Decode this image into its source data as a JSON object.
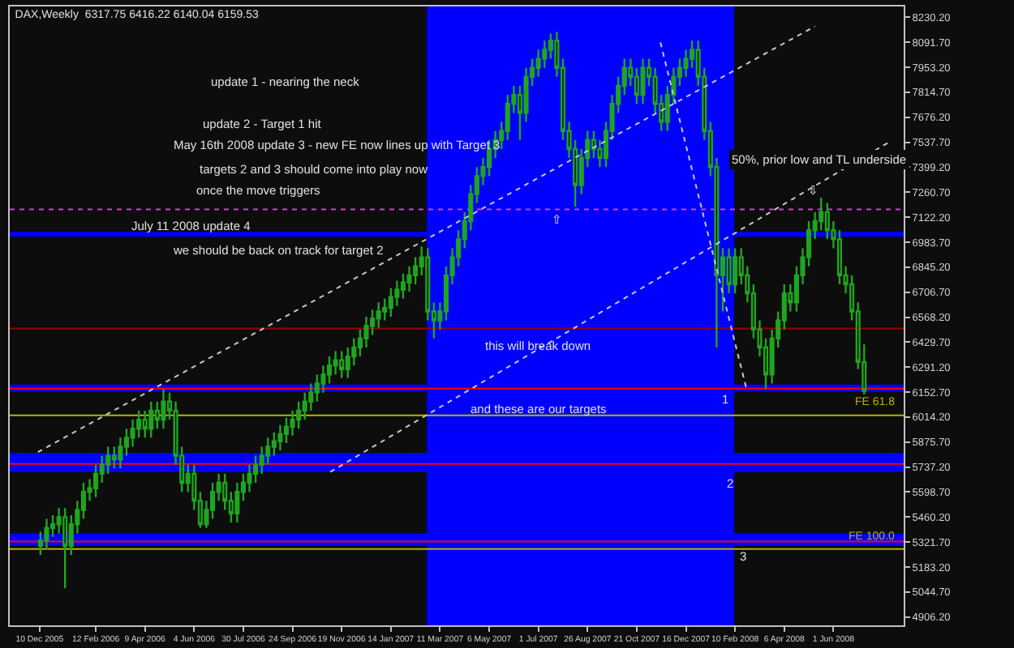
{
  "chart_data": {
    "type": "candlestick",
    "title": "DAX,Weekly  6317.75 6416.22 6140.04 6159.53",
    "color": "#1fa51f",
    "x": [
      "2005-12-11",
      "2005-12-18",
      "2005-12-25",
      "2006-01-01",
      "2006-01-08",
      "2006-01-15",
      "2006-01-22",
      "2006-01-29",
      "2006-02-05",
      "2006-02-12",
      "2006-02-19",
      "2006-02-26",
      "2006-03-05",
      "2006-03-12",
      "2006-03-19",
      "2006-03-26",
      "2006-04-02",
      "2006-04-09",
      "2006-04-16",
      "2006-04-23",
      "2006-04-30",
      "2006-05-07",
      "2006-05-14",
      "2006-05-21",
      "2006-05-28",
      "2006-06-04",
      "2006-06-11",
      "2006-06-18",
      "2006-06-25",
      "2006-07-02",
      "2006-07-09",
      "2006-07-16",
      "2006-07-23",
      "2006-07-30",
      "2006-08-06",
      "2006-08-13",
      "2006-08-20",
      "2006-08-27",
      "2006-09-03",
      "2006-09-10",
      "2006-09-17",
      "2006-09-24",
      "2006-10-01",
      "2006-10-08",
      "2006-10-15",
      "2006-10-22",
      "2006-10-29",
      "2006-11-05",
      "2006-11-12",
      "2006-11-19",
      "2006-11-26",
      "2006-12-03",
      "2006-12-10",
      "2006-12-17",
      "2006-12-24",
      "2006-12-31",
      "2007-01-07",
      "2007-01-14",
      "2007-01-21",
      "2007-01-28",
      "2007-02-04",
      "2007-02-11",
      "2007-02-18",
      "2007-02-25",
      "2007-03-04",
      "2007-03-11",
      "2007-03-18",
      "2007-03-25",
      "2007-04-01",
      "2007-04-08",
      "2007-04-15",
      "2007-04-22",
      "2007-04-29",
      "2007-05-06",
      "2007-05-13",
      "2007-05-20",
      "2007-05-27",
      "2007-06-03",
      "2007-06-10",
      "2007-06-17",
      "2007-06-24",
      "2007-07-01",
      "2007-07-08",
      "2007-07-15",
      "2007-07-22",
      "2007-07-29",
      "2007-08-05",
      "2007-08-12",
      "2007-08-19",
      "2007-08-26",
      "2007-09-02",
      "2007-09-09",
      "2007-09-16",
      "2007-09-23",
      "2007-09-30",
      "2007-10-07",
      "2007-10-14",
      "2007-10-21",
      "2007-10-28",
      "2007-11-04",
      "2007-11-11",
      "2007-11-18",
      "2007-11-25",
      "2007-12-02",
      "2007-12-09",
      "2007-12-16",
      "2007-12-23",
      "2007-12-30",
      "2008-01-06",
      "2008-01-13",
      "2008-01-20",
      "2008-01-27",
      "2008-02-03",
      "2008-02-10",
      "2008-02-17",
      "2008-02-24",
      "2008-03-02",
      "2008-03-09",
      "2008-03-16",
      "2008-03-23",
      "2008-03-30",
      "2008-04-06",
      "2008-04-13",
      "2008-04-20",
      "2008-04-27",
      "2008-05-04",
      "2008-05-11",
      "2008-05-18",
      "2008-05-25",
      "2008-06-01",
      "2008-06-08",
      "2008-06-15",
      "2008-06-22",
      "2008-06-29",
      "2008-07-06"
    ],
    "ohlc": [
      [
        5300,
        5380,
        5250,
        5330
      ],
      [
        5330,
        5450,
        5280,
        5400
      ],
      [
        5400,
        5470,
        5350,
        5420
      ],
      [
        5420,
        5510,
        5370,
        5460
      ],
      [
        5460,
        5510,
        5065,
        5300
      ],
      [
        5300,
        5470,
        5250,
        5420
      ],
      [
        5420,
        5550,
        5370,
        5500
      ],
      [
        5500,
        5650,
        5450,
        5600
      ],
      [
        5600,
        5670,
        5550,
        5620
      ],
      [
        5620,
        5750,
        5570,
        5700
      ],
      [
        5700,
        5800,
        5650,
        5750
      ],
      [
        5750,
        5850,
        5700,
        5800
      ],
      [
        5800,
        5850,
        5730,
        5780
      ],
      [
        5780,
        5900,
        5730,
        5850
      ],
      [
        5850,
        5950,
        5800,
        5900
      ],
      [
        5900,
        6000,
        5850,
        5950
      ],
      [
        5950,
        6050,
        5900,
        6000
      ],
      [
        6000,
        6050,
        5900,
        5950
      ],
      [
        5950,
        6100,
        5900,
        6050
      ],
      [
        6050,
        6100,
        5950,
        6000
      ],
      [
        6000,
        6170,
        5950,
        6100
      ],
      [
        6100,
        6150,
        6000,
        6050
      ],
      [
        6050,
        6100,
        5750,
        5800
      ],
      [
        5800,
        5850,
        5600,
        5650
      ],
      [
        5650,
        5750,
        5600,
        5700
      ],
      [
        5700,
        5750,
        5500,
        5550
      ],
      [
        5550,
        5600,
        5400,
        5420
      ],
      [
        5420,
        5550,
        5400,
        5500
      ],
      [
        5500,
        5650,
        5450,
        5600
      ],
      [
        5600,
        5700,
        5550,
        5650
      ],
      [
        5650,
        5700,
        5500,
        5550
      ],
      [
        5550,
        5600,
        5430,
        5480
      ],
      [
        5480,
        5650,
        5430,
        5600
      ],
      [
        5600,
        5700,
        5550,
        5650
      ],
      [
        5650,
        5750,
        5600,
        5700
      ],
      [
        5700,
        5800,
        5650,
        5750
      ],
      [
        5750,
        5850,
        5700,
        5800
      ],
      [
        5800,
        5900,
        5750,
        5850
      ],
      [
        5850,
        5930,
        5800,
        5880
      ],
      [
        5880,
        5970,
        5830,
        5920
      ],
      [
        5920,
        6010,
        5870,
        5960
      ],
      [
        5960,
        6050,
        5910,
        6000
      ],
      [
        6000,
        6100,
        5950,
        6050
      ],
      [
        6050,
        6150,
        6000,
        6100
      ],
      [
        6100,
        6200,
        6050,
        6150
      ],
      [
        6150,
        6250,
        6100,
        6200
      ],
      [
        6200,
        6300,
        6150,
        6250
      ],
      [
        6250,
        6350,
        6200,
        6300
      ],
      [
        6300,
        6380,
        6250,
        6330
      ],
      [
        6330,
        6380,
        6230,
        6280
      ],
      [
        6280,
        6400,
        6230,
        6350
      ],
      [
        6350,
        6450,
        6300,
        6400
      ],
      [
        6400,
        6500,
        6350,
        6450
      ],
      [
        6450,
        6570,
        6400,
        6520
      ],
      [
        6520,
        6610,
        6470,
        6560
      ],
      [
        6560,
        6650,
        6510,
        6600
      ],
      [
        6600,
        6670,
        6550,
        6620
      ],
      [
        6620,
        6730,
        6570,
        6680
      ],
      [
        6680,
        6770,
        6630,
        6720
      ],
      [
        6720,
        6810,
        6670,
        6760
      ],
      [
        6760,
        6850,
        6710,
        6800
      ],
      [
        6800,
        6900,
        6750,
        6850
      ],
      [
        6850,
        6960,
        6800,
        6900
      ],
      [
        6900,
        6950,
        6550,
        6600
      ],
      [
        6600,
        6650,
        6450,
        6550
      ],
      [
        6550,
        6650,
        6500,
        6600
      ],
      [
        6600,
        6850,
        6550,
        6800
      ],
      [
        6800,
        6950,
        6750,
        6900
      ],
      [
        6900,
        7050,
        6850,
        7000
      ],
      [
        7000,
        7150,
        6950,
        7100
      ],
      [
        7100,
        7300,
        7050,
        7250
      ],
      [
        7250,
        7400,
        7200,
        7350
      ],
      [
        7350,
        7450,
        7300,
        7400
      ],
      [
        7400,
        7550,
        7350,
        7500
      ],
      [
        7500,
        7600,
        7450,
        7550
      ],
      [
        7550,
        7650,
        7500,
        7600
      ],
      [
        7600,
        7800,
        7550,
        7750
      ],
      [
        7750,
        7850,
        7700,
        7800
      ],
      [
        7800,
        7850,
        7550,
        7700
      ],
      [
        7700,
        7950,
        7650,
        7900
      ],
      [
        7900,
        8000,
        7850,
        7950
      ],
      [
        7950,
        8050,
        7900,
        8000
      ],
      [
        8000,
        8100,
        7950,
        8050
      ],
      [
        8050,
        8140,
        8000,
        8100
      ],
      [
        8100,
        8150,
        7900,
        7950
      ],
      [
        7950,
        8000,
        7550,
        7600
      ],
      [
        7600,
        7650,
        7450,
        7500
      ],
      [
        7500,
        7550,
        7180,
        7300
      ],
      [
        7300,
        7500,
        7250,
        7450
      ],
      [
        7450,
        7600,
        7400,
        7550
      ],
      [
        7550,
        7600,
        7450,
        7500
      ],
      [
        7500,
        7550,
        7400,
        7450
      ],
      [
        7450,
        7650,
        7400,
        7600
      ],
      [
        7600,
        7800,
        7550,
        7750
      ],
      [
        7750,
        7900,
        7700,
        7850
      ],
      [
        7850,
        8000,
        7800,
        7950
      ],
      [
        7950,
        8000,
        7850,
        7900
      ],
      [
        7900,
        7950,
        7750,
        7800
      ],
      [
        7800,
        8000,
        7750,
        7950
      ],
      [
        7950,
        8000,
        7850,
        7900
      ],
      [
        7900,
        7950,
        7700,
        7750
      ],
      [
        7750,
        7800,
        7600,
        7650
      ],
      [
        7650,
        7850,
        7600,
        7800
      ],
      [
        7800,
        7950,
        7750,
        7900
      ],
      [
        7900,
        8000,
        7850,
        7950
      ],
      [
        7950,
        8050,
        7900,
        8000
      ],
      [
        8000,
        8100,
        7950,
        8050
      ],
      [
        8050,
        8100,
        7850,
        7900
      ],
      [
        7900,
        7950,
        7550,
        7600
      ],
      [
        7600,
        7650,
        7350,
        7400
      ],
      [
        7400,
        7450,
        6400,
        6800
      ],
      [
        6800,
        6950,
        6600,
        6900
      ],
      [
        6900,
        6950,
        6700,
        6750
      ],
      [
        6750,
        6950,
        6700,
        6900
      ],
      [
        6900,
        6950,
        6750,
        6800
      ],
      [
        6800,
        6850,
        6650,
        6700
      ],
      [
        6700,
        6750,
        6450,
        6500
      ],
      [
        6500,
        6550,
        6350,
        6400
      ],
      [
        6400,
        6450,
        6170,
        6250
      ],
      [
        6250,
        6500,
        6200,
        6450
      ],
      [
        6450,
        6600,
        6400,
        6550
      ],
      [
        6550,
        6750,
        6500,
        6700
      ],
      [
        6700,
        6750,
        6600,
        6650
      ],
      [
        6650,
        6850,
        6600,
        6800
      ],
      [
        6800,
        6950,
        6750,
        6900
      ],
      [
        6900,
        7100,
        6850,
        7050
      ],
      [
        7050,
        7150,
        7000,
        7100
      ],
      [
        7100,
        7230,
        7050,
        7150
      ],
      [
        7150,
        7200,
        7000,
        7050
      ],
      [
        7050,
        7100,
        6950,
        7000
      ],
      [
        7000,
        7050,
        6750,
        6800
      ],
      [
        6800,
        6850,
        6700,
        6750
      ],
      [
        6750,
        6800,
        6550,
        6600
      ],
      [
        6600,
        6650,
        6280,
        6320
      ],
      [
        6317.75,
        6416.22,
        6140.04,
        6159.53
      ]
    ],
    "series": [
      {
        "type": "line",
        "color": "#c8c8c8",
        "line_style": "dotted",
        "x": [
          "2005-12-08",
          "2008-05-11"
        ],
        "values": [
          5820,
          8180
        ]
      },
      {
        "type": "line",
        "color": "#c8c8c8",
        "line_style": "dotted",
        "x": [
          "2006-11-06",
          "2008-08-04"
        ],
        "values": [
          5710,
          7540
        ]
      },
      {
        "type": "line",
        "color": "#c8c8c8",
        "line_style": "dotted",
        "x": [
          "2007-11-17",
          "2008-02-23"
        ],
        "values": [
          8090,
          6170
        ]
      }
    ],
    "xlim": [
      "2005-11-06",
      "2008-08-20"
    ],
    "xticks": [
      {
        "value": "2005-12-10",
        "label": "10 Dec 2005"
      },
      {
        "value": "2006-02-12",
        "label": "12 Feb 2006"
      },
      {
        "value": "2006-04-09",
        "label": "9 Apr 2006"
      },
      {
        "value": "2006-06-04",
        "label": "4 Jun 2006"
      },
      {
        "value": "2006-07-30",
        "label": "30 Jul 2006"
      },
      {
        "value": "2006-09-24",
        "label": "24 Sep 2006"
      },
      {
        "value": "2006-11-19",
        "label": "19 Nov 2006"
      },
      {
        "value": "2007-01-14",
        "label": "14 Jan 2007"
      },
      {
        "value": "2007-03-11",
        "label": "11 Mar 2007"
      },
      {
        "value": "2007-05-06",
        "label": "6 May 2007"
      },
      {
        "value": "2007-07-01",
        "label": "1 Jul 2007"
      },
      {
        "value": "2007-08-26",
        "label": "26 Aug 2007"
      },
      {
        "value": "2007-10-21",
        "label": "21 Oct 2007"
      },
      {
        "value": "2007-12-16",
        "label": "16 Dec 2007"
      },
      {
        "value": "2008-02-10",
        "label": "10 Feb 2008"
      },
      {
        "value": "2008-04-06",
        "label": "6 Apr 2008"
      },
      {
        "value": "2008-06-01",
        "label": "1 Jun 2008"
      }
    ],
    "ylim": [
      4860,
      8290
    ],
    "yticks": [
      {
        "value": 4906.2,
        "label": "4906.20"
      },
      {
        "value": 5044.7,
        "label": "5044.70"
      },
      {
        "value": 5183.2,
        "label": "5183.20"
      },
      {
        "value": 5321.7,
        "label": "5321.70"
      },
      {
        "value": 5460.2,
        "label": "5460.20"
      },
      {
        "value": 5598.7,
        "label": "5598.70"
      },
      {
        "value": 5737.2,
        "label": "5737.20"
      },
      {
        "value": 5875.7,
        "label": "5875.70"
      },
      {
        "value": 6014.2,
        "label": "6014.20"
      },
      {
        "value": 6152.7,
        "label": "6152.70"
      },
      {
        "value": 6291.2,
        "label": "6291.20"
      },
      {
        "value": 6429.7,
        "label": "6429.70"
      },
      {
        "value": 6568.2,
        "label": "6568.20"
      },
      {
        "value": 6706.7,
        "label": "6706.70"
      },
      {
        "value": 6845.2,
        "label": "6845.20"
      },
      {
        "value": 6983.7,
        "label": "6983.70"
      },
      {
        "value": 7122.2,
        "label": "7122.20"
      },
      {
        "value": 7260.7,
        "label": "7260.70"
      },
      {
        "value": 7399.2,
        "label": "7399.20"
      },
      {
        "value": 7537.7,
        "label": "7537.70"
      },
      {
        "value": 7676.2,
        "label": "7676.20"
      },
      {
        "value": 7814.7,
        "label": "7814.70"
      },
      {
        "value": 7953.2,
        "label": "7953.20"
      },
      {
        "value": 8091.7,
        "label": "8091.70"
      },
      {
        "value": 8230.2,
        "label": "8230.20"
      }
    ],
    "bands": [
      {
        "axis": "x",
        "from": "2007-02-24",
        "to": "2008-02-09",
        "color": "#0000ff"
      },
      {
        "axis": "y",
        "from": 6155,
        "to": 6195,
        "color": "#0000ff"
      },
      {
        "axis": "y",
        "from": 5710,
        "to": 5815,
        "color": "#0000ff"
      },
      {
        "axis": "y",
        "from": 5300,
        "to": 5370,
        "color": "#0000ff"
      }
    ],
    "ref_lines": [
      {
        "axis": "y",
        "value": 7165,
        "color": "#cc44cc",
        "line_style": "dotted"
      },
      {
        "axis": "y",
        "value": 7027,
        "color": "#0000ff",
        "line_style": "solid"
      },
      {
        "axis": "y",
        "value": 6505,
        "color": "#990000",
        "line_style": "solid"
      },
      {
        "axis": "y",
        "value": 6172,
        "color": "#ff0000",
        "line_style": "solid"
      },
      {
        "axis": "y",
        "value": 6024,
        "color": "#b5b500",
        "line_style": "solid",
        "label": "FE 61.8"
      },
      {
        "axis": "y",
        "value": 5755,
        "color": "#ff0000",
        "line_style": "solid"
      },
      {
        "axis": "y",
        "value": 5325,
        "color": "#ff0000",
        "line_style": "solid"
      },
      {
        "axis": "y",
        "value": 5283,
        "color": "#b5b500",
        "line_style": "solid",
        "label": "FE 100.0"
      }
    ],
    "annotations": [
      "update 1 - nearing the neck",
      "update 2 - Target 1 hit",
      "May 16th 2008 update 3 - new FE now lines up with Target 3",
      "targets 2 and 3 should come into play now",
      "once the move triggers",
      "July 11 2008 update 4",
      "we should be back on track for target 2",
      {
        "text": "this will break down",
        "x": "2007-06-30",
        "y": 6407
      },
      "and these are our targets",
      {
        "text": "1",
        "x": "2008-01-29",
        "y": 6111
      },
      {
        "text": "2",
        "x": "2008-02-05",
        "y": 5649
      },
      {
        "text": "3",
        "x": "2008-02-19",
        "y": 5239
      },
      {
        "text": "50%, prior low and TL underside",
        "x": "2008-02-02",
        "y": 7440
      },
      "⇧",
      {
        "text": "⇩",
        "x": "2008-05-10",
        "y": 7270
      }
    ]
  }
}
